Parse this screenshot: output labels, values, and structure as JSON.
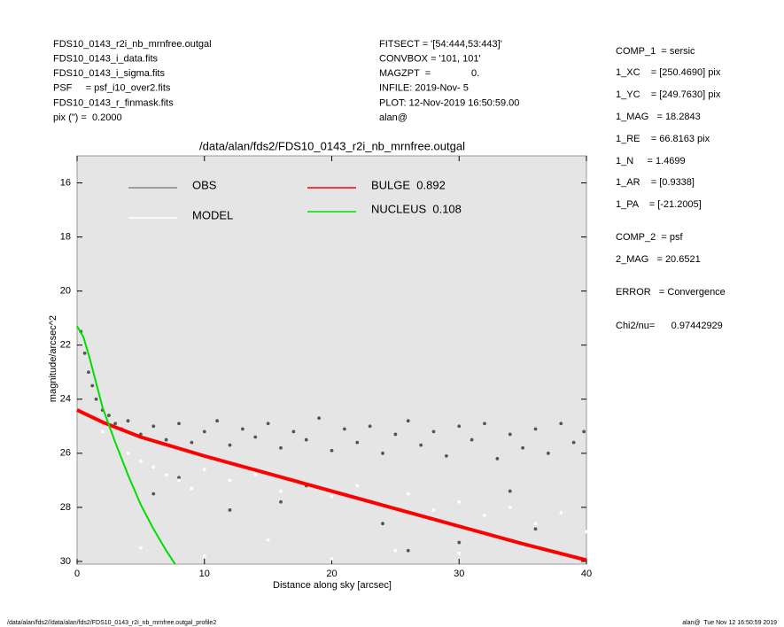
{
  "header": {
    "left": [
      "FDS10_0143_r2i_nb_mrnfree.outgal",
      "FDS10_0143_i_data.fits",
      "FDS10_0143_i_sigma.fits",
      "PSF     = psf_i10_over2.fits",
      "FDS10_0143_r_finmask.fits",
      "pix (\") =  0.2000"
    ],
    "middle": [
      "FITSECT = '[54:444,53:443]'",
      "CONVBOX = '101, 101'",
      "MAGZPT  =               0.",
      "INFILE: 2019-Nov- 5",
      "PLOT: 12-Nov-2019 16:50:59.00",
      "alan@"
    ]
  },
  "params": [
    "COMP_1  = sersic",
    "1_XC    = [250.4690] pix",
    "1_YC    = [249.7630] pix",
    "1_MAG   = 18.2843",
    "1_RE    = 66.8163 pix",
    "1_N     = 1.4699",
    "1_AR    = [0.9338]",
    "1_PA    = [-21.2005]",
    "COMP_2  = psf",
    "2_MAG   = 20.6521",
    "ERROR   = Convergence",
    "Chi2/nu=      0.97442929"
  ],
  "footer": {
    "left": "/data/alan/fds2//data/alan/fds2/FDS10_0143_r2i_nb_mrnfree.outgal_profile2",
    "right": "alan@  Tue Nov 12 16:50:59 2019"
  },
  "chart_data": {
    "type": "scatter",
    "title": "/data/alan/fds2/FDS10_0143_r2i_nb_mrnfree.outgal",
    "xlabel": "Distance along sky [arcsec]",
    "ylabel": "magnitude/arcsec^2",
    "xlim": [
      0,
      40
    ],
    "ylim": [
      30.1,
      15
    ],
    "xticks": [
      0,
      10,
      20,
      30,
      40
    ],
    "yticks": [
      16,
      18,
      20,
      22,
      24,
      26,
      28,
      30
    ],
    "series": [
      {
        "name": "OBS",
        "color": "#555555",
        "mode": "markers",
        "x": [
          0.3,
          0.6,
          0.9,
          1.2,
          1.5,
          2,
          2.5,
          3,
          3.5,
          4,
          5,
          6,
          7,
          8,
          9,
          10,
          11,
          12,
          13,
          14,
          15,
          16,
          17,
          18,
          19,
          20,
          21,
          22,
          23,
          24,
          25,
          26,
          27,
          28,
          29,
          30,
          31,
          32,
          33,
          34,
          35,
          36,
          37,
          38,
          39,
          39.8,
          6,
          12,
          18,
          24,
          30,
          36,
          8,
          16,
          26,
          34
        ],
        "values": [
          21.5,
          22.3,
          23,
          23.5,
          24,
          24.4,
          24.6,
          24.9,
          25.1,
          24.8,
          25.3,
          25,
          25.5,
          24.9,
          25.6,
          25.2,
          24.8,
          25.7,
          25.1,
          25.4,
          24.9,
          25.8,
          25.2,
          25.5,
          24.7,
          25.9,
          25.1,
          25.6,
          25.0,
          26.0,
          25.3,
          24.8,
          25.7,
          25.2,
          26.1,
          25.0,
          25.5,
          24.9,
          26.2,
          25.3,
          25.8,
          25.1,
          26.0,
          24.9,
          25.6,
          25.2,
          27.5,
          28.1,
          27.2,
          28.6,
          29.3,
          28.8,
          26.9,
          27.8,
          29.6,
          27.4
        ]
      },
      {
        "name": "MODEL",
        "color": "#ffffff",
        "mode": "markers",
        "x": [
          1,
          2,
          3,
          4,
          5,
          6,
          7,
          8,
          9,
          10,
          12,
          14,
          16,
          18,
          20,
          22,
          24,
          26,
          28,
          30,
          32,
          34,
          36,
          38,
          40,
          5,
          10,
          15,
          20,
          25,
          30,
          35
        ],
        "values": [
          24.6,
          25.2,
          25.6,
          26.0,
          26.3,
          26.5,
          26.8,
          27.0,
          27.3,
          26.6,
          27.0,
          26.8,
          27.4,
          27.1,
          27.6,
          27.2,
          27.9,
          27.5,
          28.1,
          27.8,
          28.3,
          28.0,
          28.6,
          28.2,
          28.9,
          29.5,
          29.8,
          29.2,
          29.9,
          29.6,
          29.7,
          29.4
        ]
      },
      {
        "name": "BULGE  0.892",
        "color": "#ff0000",
        "mode": "line",
        "x": [
          0,
          2,
          5,
          10,
          15,
          20,
          25,
          30,
          35,
          40
        ],
        "values": [
          24.4,
          24.85,
          25.4,
          26.1,
          26.75,
          27.4,
          28.05,
          28.7,
          29.35,
          29.95
        ]
      },
      {
        "name": "NUCLEUS  0.108",
        "color": "#00dd00",
        "mode": "line",
        "x": [
          0,
          0.5,
          1,
          2,
          3,
          4,
          5,
          6,
          7,
          7.7
        ],
        "values": [
          21.3,
          21.7,
          22.5,
          24.3,
          25.6,
          26.8,
          27.9,
          28.8,
          29.6,
          30.1
        ]
      }
    ]
  }
}
